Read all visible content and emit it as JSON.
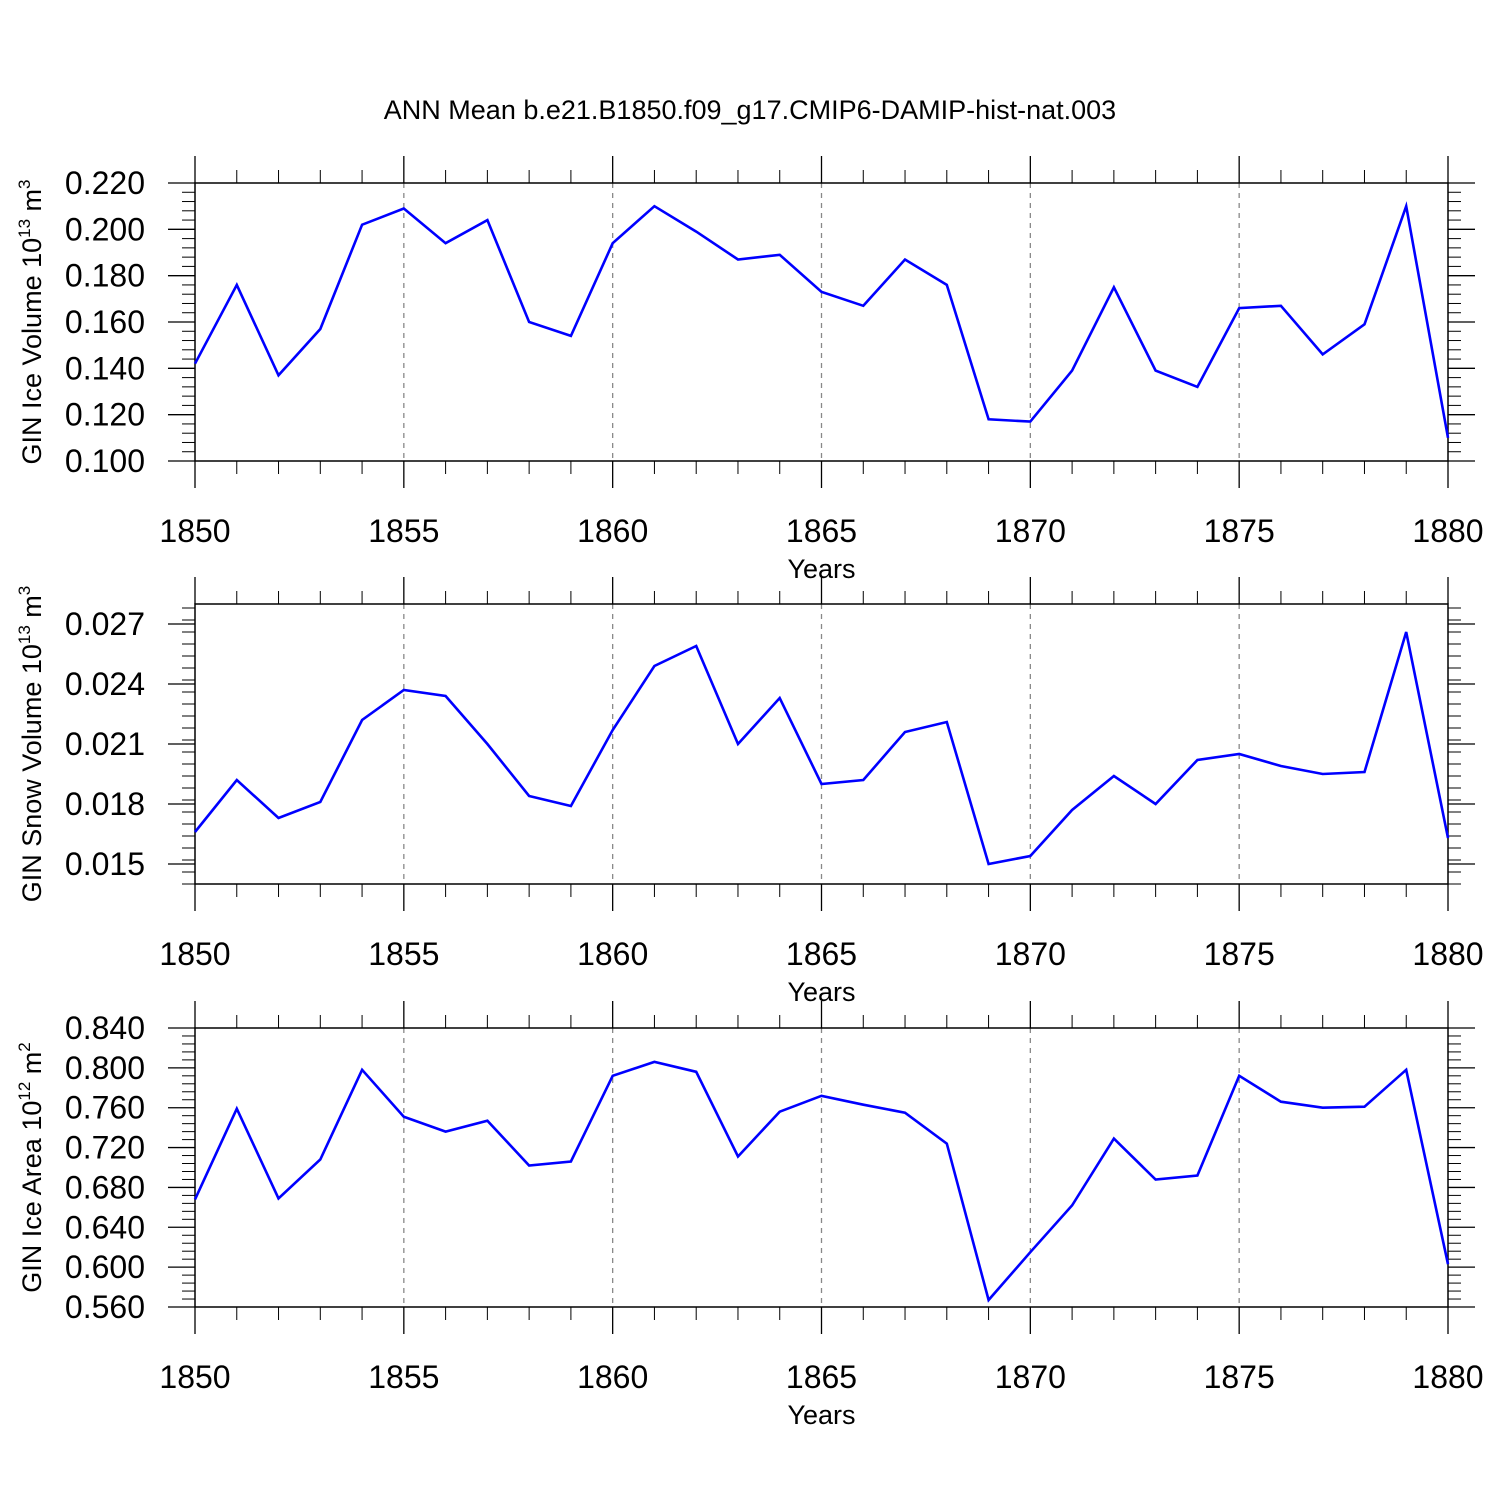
{
  "title": "ANN Mean b.e21.B1850.f09_g17.CMIP6-DAMIP-hist-nat.003",
  "chart_data": [
    {
      "type": "line",
      "ylabel": "GIN Ice Volume 10",
      "ylabel_exp": "13",
      "ylabel_unit": " m",
      "ylabel_unit_exp": "3",
      "xlabel": "Years",
      "xlim": [
        1850,
        1880
      ],
      "ylim": [
        0.1,
        0.22
      ],
      "ylim_data": [
        0.1,
        0.22
      ],
      "yticks": [
        "0.100",
        "0.120",
        "0.140",
        "0.160",
        "0.180",
        "0.200",
        "0.220"
      ],
      "xticks": [
        "1850",
        "1855",
        "1860",
        "1865",
        "1870",
        "1875",
        "1880"
      ],
      "line_color": "#0000ff",
      "grid": "vertical dashed at major x ticks",
      "x": [
        1850,
        1851,
        1852,
        1853,
        1854,
        1855,
        1856,
        1857,
        1858,
        1859,
        1860,
        1861,
        1862,
        1863,
        1864,
        1865,
        1866,
        1867,
        1868,
        1869,
        1870,
        1871,
        1872,
        1873,
        1874,
        1875,
        1876,
        1877,
        1878,
        1879,
        1880
      ],
      "values": [
        0.142,
        0.176,
        0.137,
        0.157,
        0.202,
        0.209,
        0.194,
        0.204,
        0.16,
        0.154,
        0.194,
        0.21,
        0.199,
        0.187,
        0.189,
        0.173,
        0.167,
        0.187,
        0.176,
        0.118,
        0.117,
        0.139,
        0.175,
        0.139,
        0.132,
        0.166,
        0.167,
        0.146,
        0.159,
        0.21,
        0.11
      ]
    },
    {
      "type": "line",
      "ylabel": "GIN Snow Volume 10",
      "ylabel_exp": "13",
      "ylabel_unit": " m",
      "ylabel_unit_exp": "3",
      "xlabel": "Years",
      "xlim": [
        1850,
        1880
      ],
      "ylim": [
        0.014,
        0.028
      ],
      "yticks": [
        "0.015",
        "0.018",
        "0.021",
        "0.024",
        "0.027"
      ],
      "xticks": [
        "1850",
        "1855",
        "1860",
        "1865",
        "1870",
        "1875",
        "1880"
      ],
      "line_color": "#0000ff",
      "grid": "vertical dashed at major x ticks",
      "x": [
        1850,
        1851,
        1852,
        1853,
        1854,
        1855,
        1856,
        1857,
        1858,
        1859,
        1860,
        1861,
        1862,
        1863,
        1864,
        1865,
        1866,
        1867,
        1868,
        1869,
        1870,
        1871,
        1872,
        1873,
        1874,
        1875,
        1876,
        1877,
        1878,
        1879,
        1880
      ],
      "values": [
        0.0166,
        0.0192,
        0.0173,
        0.0181,
        0.0222,
        0.0237,
        0.0234,
        0.021,
        0.0184,
        0.0179,
        0.0217,
        0.0249,
        0.0259,
        0.021,
        0.0233,
        0.019,
        0.0192,
        0.0216,
        0.0221,
        0.015,
        0.0154,
        0.0177,
        0.0194,
        0.018,
        0.0202,
        0.0205,
        0.0199,
        0.0195,
        0.0196,
        0.0266,
        0.0163
      ]
    },
    {
      "type": "line",
      "ylabel": "GIN Ice Area 10",
      "ylabel_exp": "12",
      "ylabel_unit": " m",
      "ylabel_unit_exp": "2",
      "xlabel": "Years",
      "xlim": [
        1850,
        1880
      ],
      "ylim": [
        0.56,
        0.84
      ],
      "yticks": [
        "0.560",
        "0.600",
        "0.640",
        "0.680",
        "0.720",
        "0.760",
        "0.800",
        "0.840"
      ],
      "xticks": [
        "1850",
        "1855",
        "1860",
        "1865",
        "1870",
        "1875",
        "1880"
      ],
      "line_color": "#0000ff",
      "grid": "vertical dashed at major x ticks",
      "x": [
        1850,
        1851,
        1852,
        1853,
        1854,
        1855,
        1856,
        1857,
        1858,
        1859,
        1860,
        1861,
        1862,
        1863,
        1864,
        1865,
        1866,
        1867,
        1868,
        1869,
        1870,
        1871,
        1872,
        1873,
        1874,
        1875,
        1876,
        1877,
        1878,
        1879,
        1880
      ],
      "values": [
        0.668,
        0.759,
        0.669,
        0.708,
        0.798,
        0.751,
        0.736,
        0.747,
        0.702,
        0.706,
        0.792,
        0.806,
        0.796,
        0.711,
        0.756,
        0.772,
        0.763,
        0.755,
        0.724,
        0.567,
        0.615,
        0.662,
        0.729,
        0.688,
        0.692,
        0.792,
        0.766,
        0.76,
        0.761,
        0.798,
        0.603
      ]
    }
  ]
}
